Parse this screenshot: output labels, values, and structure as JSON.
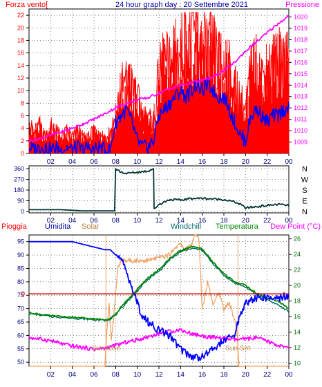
{
  "title": "24 hour graph day : 20 Settembre 2021",
  "colors": {
    "wind": "#ff0000",
    "gust_bg": "#ff0000",
    "wind_avg": "#0000ff",
    "pressure": "#ff00ff",
    "direction": "#003333",
    "humidity": "#0000ff",
    "solar": "#f0a060",
    "windchill": "#006666",
    "temperature": "#008800",
    "dewpoint": "#ff00ff",
    "rain": "#cc0000",
    "axis": "#000000"
  },
  "chart_data": [
    {
      "type": "line",
      "panel": "wind-pressure",
      "labels": {
        "left": "Forza vento[",
        "right": "Pressione"
      },
      "x_ticks": [
        "02",
        "04",
        "06",
        "08",
        "10",
        "12",
        "14",
        "16",
        "18",
        "20",
        "22",
        "00"
      ],
      "x_range": [
        0,
        24
      ],
      "y_left": {
        "ticks": [
          0,
          2,
          4,
          6,
          8,
          10,
          12,
          14,
          16,
          18,
          20,
          22
        ],
        "range": [
          0,
          23
        ]
      },
      "y_right": {
        "ticks": [
          1009,
          1010,
          1011,
          1012,
          1013,
          1014,
          1015,
          1016,
          1017,
          1018,
          1019,
          1020
        ],
        "range": [
          1008.0,
          1020.7
        ]
      },
      "series": [
        {
          "key": "wind_gust",
          "axis": "left",
          "x": [
            0,
            0.5,
            1,
            1.5,
            2,
            2.5,
            3,
            3.5,
            4,
            4.5,
            5,
            5.5,
            6,
            6.5,
            7,
            7.5,
            8,
            8.5,
            9,
            9.5,
            10,
            10.5,
            11,
            11.5,
            12,
            12.5,
            13,
            13.5,
            14,
            14.5,
            15,
            15.5,
            16,
            16.5,
            17,
            17.5,
            18,
            18.5,
            19,
            19.5,
            20,
            20.5,
            21,
            21.5,
            22,
            22.5,
            23,
            23.5,
            24
          ],
          "values": [
            5,
            4,
            5,
            3,
            5,
            4,
            3,
            4,
            3,
            4,
            3,
            3,
            4,
            3,
            3,
            4,
            7,
            12,
            13,
            12,
            10,
            7,
            6,
            6,
            14,
            17,
            16,
            18,
            19,
            20,
            21,
            22,
            18,
            20,
            19,
            17,
            16,
            15,
            12,
            10,
            8,
            15,
            16,
            14,
            15,
            16,
            17,
            18,
            16
          ]
        },
        {
          "key": "wind_avg",
          "axis": "left",
          "x": [
            0,
            0.5,
            1,
            1.5,
            2,
            2.5,
            3,
            3.5,
            4,
            4.5,
            5,
            5.5,
            6,
            6.5,
            7,
            7.5,
            8,
            8.5,
            9,
            9.5,
            10,
            10.5,
            11,
            11.5,
            12,
            12.5,
            13,
            13.5,
            14,
            14.5,
            15,
            15.5,
            16,
            16.5,
            17,
            17.5,
            18,
            18.5,
            19,
            19.5,
            20,
            20.5,
            21,
            21.5,
            22,
            22.5,
            23,
            23.5,
            24
          ],
          "values": [
            1,
            0.5,
            1,
            1,
            0.5,
            1,
            0.5,
            1,
            0.5,
            1,
            0.5,
            1,
            0.5,
            1,
            0.5,
            0.5,
            5,
            6,
            7,
            5,
            2,
            1,
            1,
            2,
            6,
            7,
            8,
            9,
            10,
            9,
            10,
            11,
            10,
            11,
            10,
            9,
            9,
            7,
            5,
            3,
            2,
            6,
            7,
            6,
            5,
            6,
            6,
            7,
            7
          ]
        },
        {
          "key": "pressure",
          "axis": "right",
          "x": [
            0,
            1,
            2,
            3,
            4,
            5,
            6,
            7,
            8,
            9,
            10,
            11,
            12,
            13,
            14,
            15,
            16,
            17,
            18,
            19,
            20,
            21,
            22,
            23,
            24
          ],
          "values": [
            1009.1,
            1009.3,
            1009.6,
            1009.9,
            1010.2,
            1010.6,
            1011.0,
            1011.5,
            1012.0,
            1012.4,
            1012.7,
            1012.9,
            1013.3,
            1013.7,
            1014.0,
            1014.2,
            1014.4,
            1014.7,
            1015.3,
            1016.0,
            1017.0,
            1017.8,
            1018.6,
            1019.4,
            1020.1
          ]
        }
      ]
    },
    {
      "type": "line",
      "panel": "wind-direction",
      "labels": {
        "right_cardinals": [
          "N",
          "W",
          "S",
          "E",
          "N"
        ]
      },
      "x_ticks": [
        "02",
        "04",
        "06",
        "08",
        "10",
        "12",
        "14",
        "16",
        "18",
        "20",
        "22",
        "00"
      ],
      "x_range": [
        0,
        24
      ],
      "y_left": {
        "ticks": [
          0,
          90,
          180,
          270,
          360
        ],
        "range": [
          0,
          360
        ]
      },
      "series": [
        {
          "key": "direction",
          "axis": "left",
          "x": [
            0,
            1,
            2,
            3,
            4,
            5,
            6,
            7,
            7.9,
            8.0,
            8.5,
            9,
            10,
            11,
            11.5,
            11.55,
            12,
            13,
            14,
            15,
            16,
            17,
            18,
            19,
            19.5,
            20,
            21,
            22,
            23,
            24
          ],
          "values": [
            15,
            15,
            15,
            15,
            10,
            5,
            5,
            5,
            5,
            360,
            330,
            320,
            330,
            340,
            360,
            20,
            60,
            100,
            95,
            110,
            110,
            105,
            100,
            80,
            60,
            30,
            40,
            50,
            60,
            50
          ]
        }
      ]
    },
    {
      "type": "line",
      "panel": "temperature-humidity",
      "labels": {
        "rain": "Pioggia",
        "humidity": "Umidita",
        "solar": "Solar",
        "windchill": "Windchill",
        "temperature": "Temperatura",
        "dewpoint": "Dew Point (°C)",
        "sunrise": "Sun Rise",
        "sunset": "Sun Set"
      },
      "x_ticks": [
        "02",
        "04",
        "06",
        "08",
        "10",
        "12",
        "14",
        "16",
        "18",
        "20",
        "22",
        "00"
      ],
      "x_range": [
        0,
        24
      ],
      "y_left": {
        "ticks": [
          50,
          55,
          60,
          65,
          70,
          75,
          80,
          85,
          90,
          95
        ],
        "range": [
          48.5,
          97.5
        ]
      },
      "y_right": {
        "ticks": [
          10,
          12,
          14,
          16,
          18,
          20,
          22,
          24,
          26
        ],
        "range": [
          9.6,
          26.5
        ]
      },
      "rain_marker": {
        "label": "0",
        "value": 0
      },
      "sunrise_x": 7.1,
      "sunset_x": 19.3,
      "series": [
        {
          "key": "humidity",
          "axis": "left",
          "x": [
            0,
            1,
            2,
            3,
            4,
            5,
            6,
            7,
            7.5,
            8,
            8.5,
            9,
            9.5,
            10,
            10.5,
            11,
            12,
            13,
            14,
            15,
            16,
            17,
            18,
            19,
            19.5,
            20,
            21,
            22,
            23,
            24
          ],
          "values": [
            95,
            95,
            95,
            95,
            95,
            94,
            93,
            92,
            92,
            90,
            88,
            84,
            78,
            72,
            67,
            65,
            62,
            60,
            55,
            52,
            52,
            55,
            58,
            60,
            68,
            72,
            74,
            74,
            74,
            75
          ]
        },
        {
          "key": "temperature",
          "axis": "right",
          "x": [
            0,
            1,
            2,
            3,
            4,
            5,
            6,
            7,
            7.5,
            8,
            8.5,
            9,
            10,
            11,
            12,
            13,
            14,
            15,
            16,
            17,
            18,
            19,
            20,
            21,
            22,
            23,
            24
          ],
          "values": [
            16.5,
            16.3,
            16.1,
            16.0,
            15.9,
            15.8,
            15.7,
            15.6,
            15.8,
            16.3,
            17.2,
            18.0,
            19.5,
            21.0,
            22.0,
            23.5,
            24.5,
            25.0,
            24.7,
            23.0,
            21.5,
            20.5,
            20.0,
            19.0,
            18.4,
            18.0,
            17.0
          ]
        },
        {
          "key": "windchill",
          "axis": "right",
          "x": [
            0,
            1,
            2,
            3,
            4,
            5,
            6,
            7,
            7.5,
            8,
            8.5,
            9,
            10,
            11,
            12,
            13,
            14,
            15,
            16,
            17,
            18,
            19,
            20,
            21,
            22,
            23,
            24
          ],
          "values": [
            16.4,
            16.2,
            16.0,
            15.9,
            15.8,
            15.7,
            15.6,
            15.5,
            15.7,
            16.2,
            17.0,
            17.8,
            19.3,
            20.8,
            21.8,
            23.3,
            24.3,
            24.8,
            24.5,
            22.8,
            21.3,
            20.3,
            19.8,
            18.8,
            18.2,
            17.5,
            16.6
          ]
        },
        {
          "key": "dewpoint",
          "axis": "right",
          "x": [
            0,
            1,
            2,
            3,
            4,
            5,
            6,
            7,
            8,
            9,
            10,
            11,
            12,
            13,
            14,
            15,
            16,
            17,
            18,
            19,
            20,
            21,
            22,
            23,
            24
          ],
          "values": [
            13.3,
            13.1,
            12.9,
            12.5,
            12.2,
            12.0,
            11.8,
            11.9,
            12.3,
            12.7,
            13.0,
            13.4,
            13.8,
            14.1,
            14.3,
            13.8,
            13.5,
            13.3,
            13.2,
            13.0,
            13.1,
            13.3,
            12.8,
            12.3,
            11.9
          ]
        },
        {
          "key": "solar",
          "axis": "left",
          "x": [
            0,
            7.0,
            7.2,
            7.4,
            7.6,
            7.8,
            8.0,
            8.2,
            8.5,
            9,
            10,
            11,
            12,
            13,
            13.5,
            14,
            14.5,
            15,
            15.3,
            15.5,
            15.7,
            16,
            16.5,
            17,
            17.5,
            18,
            18.5,
            19,
            19.2,
            19.4,
            20,
            24
          ],
          "values": [
            48.5,
            48.5,
            62,
            72,
            58,
            66,
            76,
            85,
            88,
            88,
            88,
            88,
            89,
            90,
            93,
            94,
            92,
            94,
            97,
            97,
            96,
            70,
            80,
            72,
            76,
            70,
            72,
            66,
            62,
            48.5,
            48.5,
            48.5
          ]
        }
      ]
    }
  ]
}
